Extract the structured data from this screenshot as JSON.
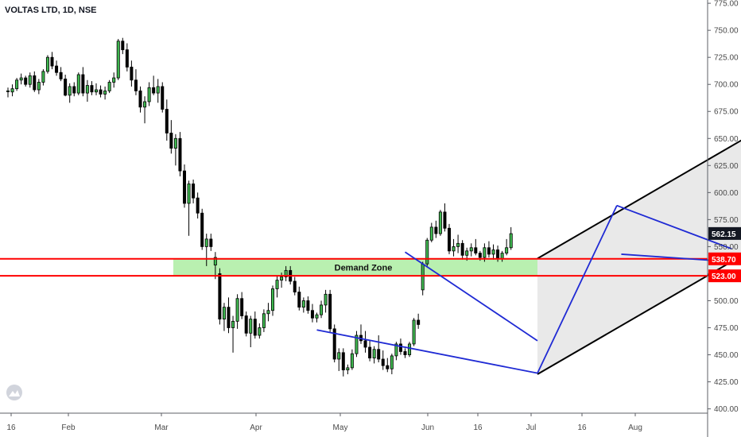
{
  "chart_data": {
    "type": "candlestick",
    "title": "VOLTAS LTD, 1D, NSE",
    "symbol": "VOLTAS LTD",
    "interval": "1D",
    "exchange": "NSE",
    "y_axis_position": "right",
    "ylim": [
      395,
      780
    ],
    "y_ticks": [
      400,
      425,
      450,
      475,
      500,
      525,
      550,
      575,
      600,
      625,
      650,
      675,
      700,
      725,
      750,
      775
    ],
    "x_tick_labels": [
      "16",
      "Feb",
      "Mar",
      "Apr",
      "May",
      "Jun",
      "16",
      "Jul",
      "16",
      "Aug"
    ],
    "current_price": {
      "label": "562.15",
      "value": 562.15
    },
    "levels": [
      {
        "label": "538.70",
        "value": 538.7,
        "color": "#ff0000"
      },
      {
        "label": "523.00",
        "value": 523.0,
        "color": "#ff0000"
      }
    ],
    "zone": {
      "label": "Demand Zone",
      "low": 523,
      "high": 538.7,
      "color": "#b9f0b0"
    },
    "channel": {
      "lower_start": {
        "day": 120,
        "price": 432
      },
      "lower_end": {
        "day": 224,
        "price": 678
      },
      "upper_start": {
        "day": 120,
        "price": 539
      },
      "upper_end": {
        "day": 224,
        "price": 785
      }
    },
    "blue_lines": [
      {
        "x1": 70,
        "y1": 473,
        "x2": 120,
        "y2": 433
      },
      {
        "x1": 90,
        "y1": 545,
        "x2": 120,
        "y2": 463
      },
      {
        "x1": 120,
        "y1": 433,
        "x2": 138,
        "y2": 588
      },
      {
        "x1": 138,
        "y1": 588,
        "x2": 164,
        "y2": 548
      },
      {
        "x1": 139,
        "y1": 543,
        "x2": 164,
        "y2": 536
      }
    ],
    "candles": [
      [
        0,
        694,
        697,
        688,
        694
      ],
      [
        1,
        693,
        700,
        689,
        696
      ],
      [
        2,
        696,
        706,
        694,
        704
      ],
      [
        3,
        704,
        710,
        700,
        706
      ],
      [
        4,
        706,
        708,
        698,
        700
      ],
      [
        5,
        700,
        711,
        697,
        708
      ],
      [
        6,
        708,
        712,
        693,
        695
      ],
      [
        7,
        695,
        705,
        691,
        702
      ],
      [
        8,
        702,
        714,
        699,
        712
      ],
      [
        9,
        712,
        727,
        710,
        725
      ],
      [
        10,
        725,
        730,
        714,
        717
      ],
      [
        11,
        717,
        722,
        708,
        711
      ],
      [
        12,
        711,
        716,
        703,
        705
      ],
      [
        13,
        705,
        709,
        689,
        690
      ],
      [
        14,
        690,
        701,
        683,
        698
      ],
      [
        15,
        698,
        702,
        689,
        692
      ],
      [
        16,
        692,
        711,
        690,
        709
      ],
      [
        17,
        709,
        716,
        689,
        692
      ],
      [
        18,
        692,
        704,
        684,
        699
      ],
      [
        19,
        699,
        703,
        690,
        693
      ],
      [
        20,
        693,
        701,
        690,
        695
      ],
      [
        21,
        695,
        699,
        688,
        691
      ],
      [
        22,
        691,
        698,
        686,
        694
      ],
      [
        23,
        694,
        704,
        692,
        702
      ],
      [
        24,
        702,
        711,
        697,
        706
      ],
      [
        25,
        706,
        742,
        704,
        740
      ],
      [
        26,
        740,
        743,
        728,
        732
      ],
      [
        27,
        732,
        738,
        712,
        716
      ],
      [
        28,
        716,
        722,
        698,
        704
      ],
      [
        29,
        704,
        714,
        690,
        694
      ],
      [
        30,
        694,
        698,
        674,
        679
      ],
      [
        31,
        679,
        689,
        664,
        684
      ],
      [
        32,
        684,
        702,
        680,
        697
      ],
      [
        33,
        697,
        708,
        690,
        692
      ],
      [
        34,
        692,
        705,
        683,
        698
      ],
      [
        35,
        698,
        702,
        674,
        677
      ],
      [
        36,
        677,
        686,
        648,
        655
      ],
      [
        37,
        655,
        667,
        636,
        641
      ],
      [
        38,
        641,
        654,
        625,
        650
      ],
      [
        39,
        650,
        656,
        615,
        620
      ],
      [
        40,
        620,
        626,
        586,
        590
      ],
      [
        41,
        590,
        611,
        560,
        608
      ],
      [
        42,
        608,
        612,
        590,
        595
      ],
      [
        43,
        595,
        600,
        576,
        581
      ],
      [
        44,
        581,
        585,
        547,
        550
      ],
      [
        45,
        550,
        562,
        532,
        557
      ],
      [
        46,
        557,
        562,
        546,
        550
      ],
      [
        47,
        533,
        545,
        520,
        540
      ],
      [
        48,
        525,
        530,
        478,
        483
      ],
      [
        49,
        483,
        498,
        472,
        494
      ],
      [
        50,
        494,
        503,
        470,
        475
      ],
      [
        51,
        475,
        486,
        452,
        481
      ],
      [
        52,
        481,
        506,
        474,
        502
      ],
      [
        53,
        502,
        508,
        483,
        486
      ],
      [
        54,
        486,
        490,
        467,
        470
      ],
      [
        55,
        470,
        486,
        457,
        483
      ],
      [
        56,
        483,
        490,
        465,
        468
      ],
      [
        57,
        468,
        479,
        465,
        475
      ],
      [
        58,
        475,
        492,
        471,
        488
      ],
      [
        59,
        488,
        498,
        481,
        491
      ],
      [
        60,
        491,
        514,
        486,
        511
      ],
      [
        61,
        511,
        523,
        503,
        519
      ],
      [
        62,
        519,
        526,
        512,
        522
      ],
      [
        63,
        522,
        532,
        518,
        528
      ],
      [
        64,
        528,
        532,
        515,
        518
      ],
      [
        65,
        518,
        522,
        505,
        508
      ],
      [
        66,
        508,
        513,
        491,
        494
      ],
      [
        67,
        494,
        503,
        489,
        500
      ],
      [
        68,
        500,
        504,
        488,
        491
      ],
      [
        69,
        491,
        497,
        480,
        484
      ],
      [
        70,
        484,
        489,
        480,
        487
      ],
      [
        71,
        487,
        500,
        484,
        496
      ],
      [
        72,
        496,
        510,
        489,
        506
      ],
      [
        73,
        506,
        510,
        471,
        474
      ],
      [
        74,
        474,
        478,
        443,
        446
      ],
      [
        75,
        446,
        456,
        435,
        452
      ],
      [
        76,
        452,
        456,
        430,
        436
      ],
      [
        77,
        436,
        441,
        432,
        438
      ],
      [
        78,
        438,
        455,
        436,
        451
      ],
      [
        79,
        451,
        472,
        448,
        468
      ],
      [
        80,
        468,
        478,
        460,
        463
      ],
      [
        81,
        463,
        472,
        452,
        457
      ],
      [
        82,
        457,
        463,
        444,
        447
      ],
      [
        83,
        447,
        458,
        442,
        455
      ],
      [
        84,
        455,
        468,
        443,
        446
      ],
      [
        85,
        446,
        454,
        436,
        440
      ],
      [
        86,
        440,
        447,
        434,
        437
      ],
      [
        87,
        437,
        451,
        432,
        449
      ],
      [
        88,
        449,
        462,
        445,
        460
      ],
      [
        89,
        460,
        465,
        450,
        453
      ],
      [
        90,
        453,
        456,
        447,
        450
      ],
      [
        91,
        450,
        462,
        448,
        460
      ],
      [
        92,
        460,
        484,
        458,
        482
      ],
      [
        93,
        482,
        488,
        474,
        478
      ],
      [
        94,
        510,
        536,
        505,
        534
      ],
      [
        95,
        534,
        558,
        531,
        556
      ],
      [
        96,
        556,
        572,
        554,
        568
      ],
      [
        97,
        568,
        574,
        558,
        562
      ],
      [
        98,
        562,
        584,
        560,
        582
      ],
      [
        99,
        582,
        590,
        564,
        567
      ],
      [
        100,
        567,
        571,
        543,
        546
      ],
      [
        101,
        546,
        557,
        541,
        550
      ],
      [
        102,
        550,
        561,
        544,
        553
      ],
      [
        103,
        553,
        556,
        538,
        542
      ],
      [
        104,
        542,
        549,
        537,
        546
      ],
      [
        105,
        546,
        553,
        541,
        549
      ],
      [
        106,
        549,
        557,
        542,
        544
      ],
      [
        107,
        544,
        546,
        537,
        540
      ],
      [
        108,
        540,
        553,
        536,
        549
      ],
      [
        109,
        549,
        555,
        540,
        543
      ],
      [
        110,
        543,
        552,
        538,
        547
      ],
      [
        111,
        547,
        551,
        536,
        539
      ],
      [
        112,
        539,
        546,
        536,
        544
      ],
      [
        113,
        544,
        557,
        542,
        549
      ],
      [
        114,
        549,
        568,
        547,
        562
      ]
    ]
  }
}
